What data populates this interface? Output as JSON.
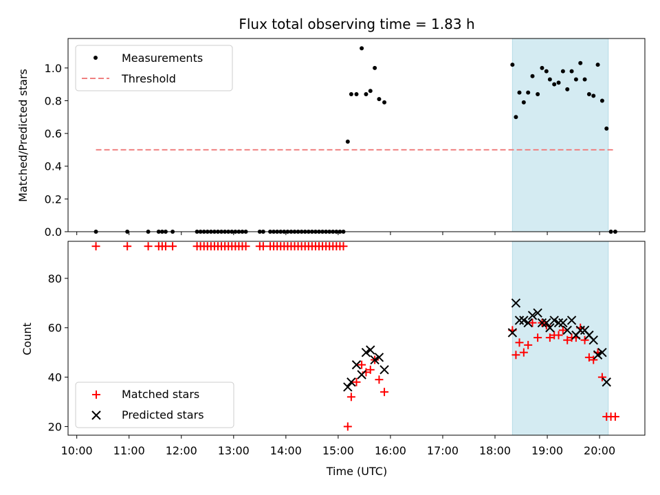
{
  "chart_data": {
    "type": "scatter",
    "title": "Flux total observing time = 1.83 h",
    "xlabel": "Time (UTC)",
    "x_ticks": [
      "10:00",
      "11:00",
      "12:00",
      "13:00",
      "14:00",
      "15:00",
      "16:00",
      "17:00",
      "18:00",
      "19:00",
      "20:00"
    ],
    "highlight_span": [
      "18:20",
      "20:10"
    ],
    "highlight_color": "#d4ebf2",
    "panels": [
      {
        "id": "ratio",
        "ylabel": "Matched/Predicted stars",
        "ylim": [
          0,
          1.18
        ],
        "y_ticks": [
          "0.0",
          "0.2",
          "0.4",
          "0.6",
          "0.8",
          "1.0"
        ],
        "legend_position": "top-left",
        "series": [
          {
            "name": "Measurements",
            "marker": "dot",
            "color": "#000000",
            "points": [
              [
                "10:22",
                0
              ],
              [
                "10:58",
                0
              ],
              [
                "11:22",
                0
              ],
              [
                "11:34",
                0
              ],
              [
                "11:38",
                0
              ],
              [
                "11:42",
                0
              ],
              [
                "11:50",
                0
              ],
              [
                "12:18",
                0
              ],
              [
                "12:22",
                0
              ],
              [
                "12:26",
                0
              ],
              [
                "12:30",
                0
              ],
              [
                "12:34",
                0
              ],
              [
                "12:38",
                0
              ],
              [
                "12:42",
                0
              ],
              [
                "12:46",
                0
              ],
              [
                "12:50",
                0
              ],
              [
                "12:54",
                0
              ],
              [
                "12:58",
                0
              ],
              [
                "13:02",
                0
              ],
              [
                "13:06",
                0
              ],
              [
                "13:10",
                0
              ],
              [
                "13:14",
                0
              ],
              [
                "13:30",
                0
              ],
              [
                "13:34",
                0
              ],
              [
                "13:42",
                0
              ],
              [
                "13:46",
                0
              ],
              [
                "13:50",
                0
              ],
              [
                "13:54",
                0
              ],
              [
                "13:58",
                0
              ],
              [
                "14:02",
                0
              ],
              [
                "14:06",
                0
              ],
              [
                "14:10",
                0
              ],
              [
                "14:14",
                0
              ],
              [
                "14:18",
                0
              ],
              [
                "14:22",
                0
              ],
              [
                "14:26",
                0
              ],
              [
                "14:30",
                0
              ],
              [
                "14:34",
                0
              ],
              [
                "14:38",
                0
              ],
              [
                "14:42",
                0
              ],
              [
                "14:46",
                0
              ],
              [
                "14:50",
                0
              ],
              [
                "14:54",
                0
              ],
              [
                "14:58",
                0
              ],
              [
                "15:02",
                0
              ],
              [
                "15:06",
                0
              ],
              [
                "15:11",
                0.55
              ],
              [
                "15:15",
                0.84
              ],
              [
                "15:21",
                0.84
              ],
              [
                "15:27",
                1.12
              ],
              [
                "15:32",
                0.84
              ],
              [
                "15:37",
                0.86
              ],
              [
                "15:42",
                1.0
              ],
              [
                "15:47",
                0.81
              ],
              [
                "15:53",
                0.79
              ],
              [
                "18:20",
                1.02
              ],
              [
                "18:24",
                0.7
              ],
              [
                "18:28",
                0.85
              ],
              [
                "18:33",
                0.79
              ],
              [
                "18:38",
                0.85
              ],
              [
                "18:43",
                0.95
              ],
              [
                "18:49",
                0.84
              ],
              [
                "18:54",
                1.0
              ],
              [
                "18:59",
                0.98
              ],
              [
                "19:03",
                0.93
              ],
              [
                "19:08",
                0.9
              ],
              [
                "19:13",
                0.91
              ],
              [
                "19:18",
                0.98
              ],
              [
                "19:23",
                0.87
              ],
              [
                "19:28",
                0.98
              ],
              [
                "19:33",
                0.93
              ],
              [
                "19:38",
                1.03
              ],
              [
                "19:43",
                0.93
              ],
              [
                "19:48",
                0.84
              ],
              [
                "19:53",
                0.83
              ],
              [
                "19:58",
                1.02
              ],
              [
                "20:03",
                0.8
              ],
              [
                "20:08",
                0.63
              ],
              [
                "20:13",
                0
              ],
              [
                "20:18",
                0
              ]
            ]
          },
          {
            "name": "Threshold",
            "marker": "dashed-line",
            "color": "#f08080",
            "points": [
              [
                "10:22",
                0.5
              ],
              [
                "20:18",
                0.5
              ]
            ]
          }
        ]
      },
      {
        "id": "counts",
        "ylabel": "Count",
        "ylim": [
          16.5,
          95
        ],
        "y_ticks": [
          "20",
          "40",
          "60",
          "80"
        ],
        "legend_position": "bottom-left",
        "series": [
          {
            "name": "Matched stars",
            "marker": "plus",
            "color": "#ff0000",
            "points": [
              [
                "10:22",
                93
              ],
              [
                "10:58",
                93
              ],
              [
                "11:22",
                93
              ],
              [
                "11:34",
                93
              ],
              [
                "11:38",
                93
              ],
              [
                "11:42",
                93
              ],
              [
                "11:50",
                93
              ],
              [
                "12:18",
                93
              ],
              [
                "12:22",
                93
              ],
              [
                "12:26",
                93
              ],
              [
                "12:30",
                93
              ],
              [
                "12:34",
                93
              ],
              [
                "12:38",
                93
              ],
              [
                "12:42",
                93
              ],
              [
                "12:46",
                93
              ],
              [
                "12:50",
                93
              ],
              [
                "12:54",
                93
              ],
              [
                "12:58",
                93
              ],
              [
                "13:02",
                93
              ],
              [
                "13:06",
                93
              ],
              [
                "13:10",
                93
              ],
              [
                "13:14",
                93
              ],
              [
                "13:30",
                93
              ],
              [
                "13:34",
                93
              ],
              [
                "13:42",
                93
              ],
              [
                "13:46",
                93
              ],
              [
                "13:50",
                93
              ],
              [
                "13:54",
                93
              ],
              [
                "13:58",
                93
              ],
              [
                "14:02",
                93
              ],
              [
                "14:06",
                93
              ],
              [
                "14:10",
                93
              ],
              [
                "14:14",
                93
              ],
              [
                "14:18",
                93
              ],
              [
                "14:22",
                93
              ],
              [
                "14:26",
                93
              ],
              [
                "14:30",
                93
              ],
              [
                "14:34",
                93
              ],
              [
                "14:38",
                93
              ],
              [
                "14:42",
                93
              ],
              [
                "14:46",
                93
              ],
              [
                "14:50",
                93
              ],
              [
                "14:54",
                93
              ],
              [
                "14:58",
                93
              ],
              [
                "15:02",
                93
              ],
              [
                "15:06",
                93
              ],
              [
                "15:11",
                20
              ],
              [
                "15:15",
                32
              ],
              [
                "15:21",
                38
              ],
              [
                "15:27",
                45
              ],
              [
                "15:32",
                42
              ],
              [
                "15:37",
                43
              ],
              [
                "15:42",
                47
              ],
              [
                "15:47",
                39
              ],
              [
                "15:53",
                34
              ],
              [
                "18:20",
                59
              ],
              [
                "18:24",
                49
              ],
              [
                "18:28",
                54
              ],
              [
                "18:33",
                50
              ],
              [
                "18:38",
                53
              ],
              [
                "18:43",
                62
              ],
              [
                "18:49",
                56
              ],
              [
                "18:54",
                62
              ],
              [
                "18:59",
                61
              ],
              [
                "19:03",
                56
              ],
              [
                "19:08",
                57
              ],
              [
                "19:13",
                57
              ],
              [
                "19:18",
                59
              ],
              [
                "19:23",
                55
              ],
              [
                "19:28",
                56
              ],
              [
                "19:33",
                56
              ],
              [
                "19:38",
                60
              ],
              [
                "19:43",
                55
              ],
              [
                "19:48",
                48
              ],
              [
                "19:53",
                47
              ],
              [
                "19:58",
                50
              ],
              [
                "20:03",
                40
              ],
              [
                "20:08",
                24
              ],
              [
                "20:13",
                24
              ],
              [
                "20:18",
                24
              ]
            ]
          },
          {
            "name": "Predicted stars",
            "marker": "x",
            "color": "#000000",
            "points": [
              [
                "15:11",
                36
              ],
              [
                "15:15",
                38
              ],
              [
                "15:21",
                45
              ],
              [
                "15:27",
                41
              ],
              [
                "15:32",
                50
              ],
              [
                "15:37",
                51
              ],
              [
                "15:42",
                47
              ],
              [
                "15:47",
                48
              ],
              [
                "15:53",
                43
              ],
              [
                "18:20",
                58
              ],
              [
                "18:24",
                70
              ],
              [
                "18:28",
                63
              ],
              [
                "18:33",
                63
              ],
              [
                "18:38",
                62
              ],
              [
                "18:43",
                65
              ],
              [
                "18:49",
                66
              ],
              [
                "18:54",
                62
              ],
              [
                "18:59",
                62
              ],
              [
                "19:03",
                60
              ],
              [
                "19:08",
                63
              ],
              [
                "19:13",
                62
              ],
              [
                "19:18",
                62
              ],
              [
                "19:23",
                59
              ],
              [
                "19:28",
                63
              ],
              [
                "19:33",
                57
              ],
              [
                "19:38",
                59
              ],
              [
                "19:43",
                59
              ],
              [
                "19:48",
                57
              ],
              [
                "19:53",
                55
              ],
              [
                "19:58",
                49
              ],
              [
                "20:03",
                50
              ],
              [
                "20:08",
                38
              ]
            ]
          }
        ]
      }
    ]
  }
}
